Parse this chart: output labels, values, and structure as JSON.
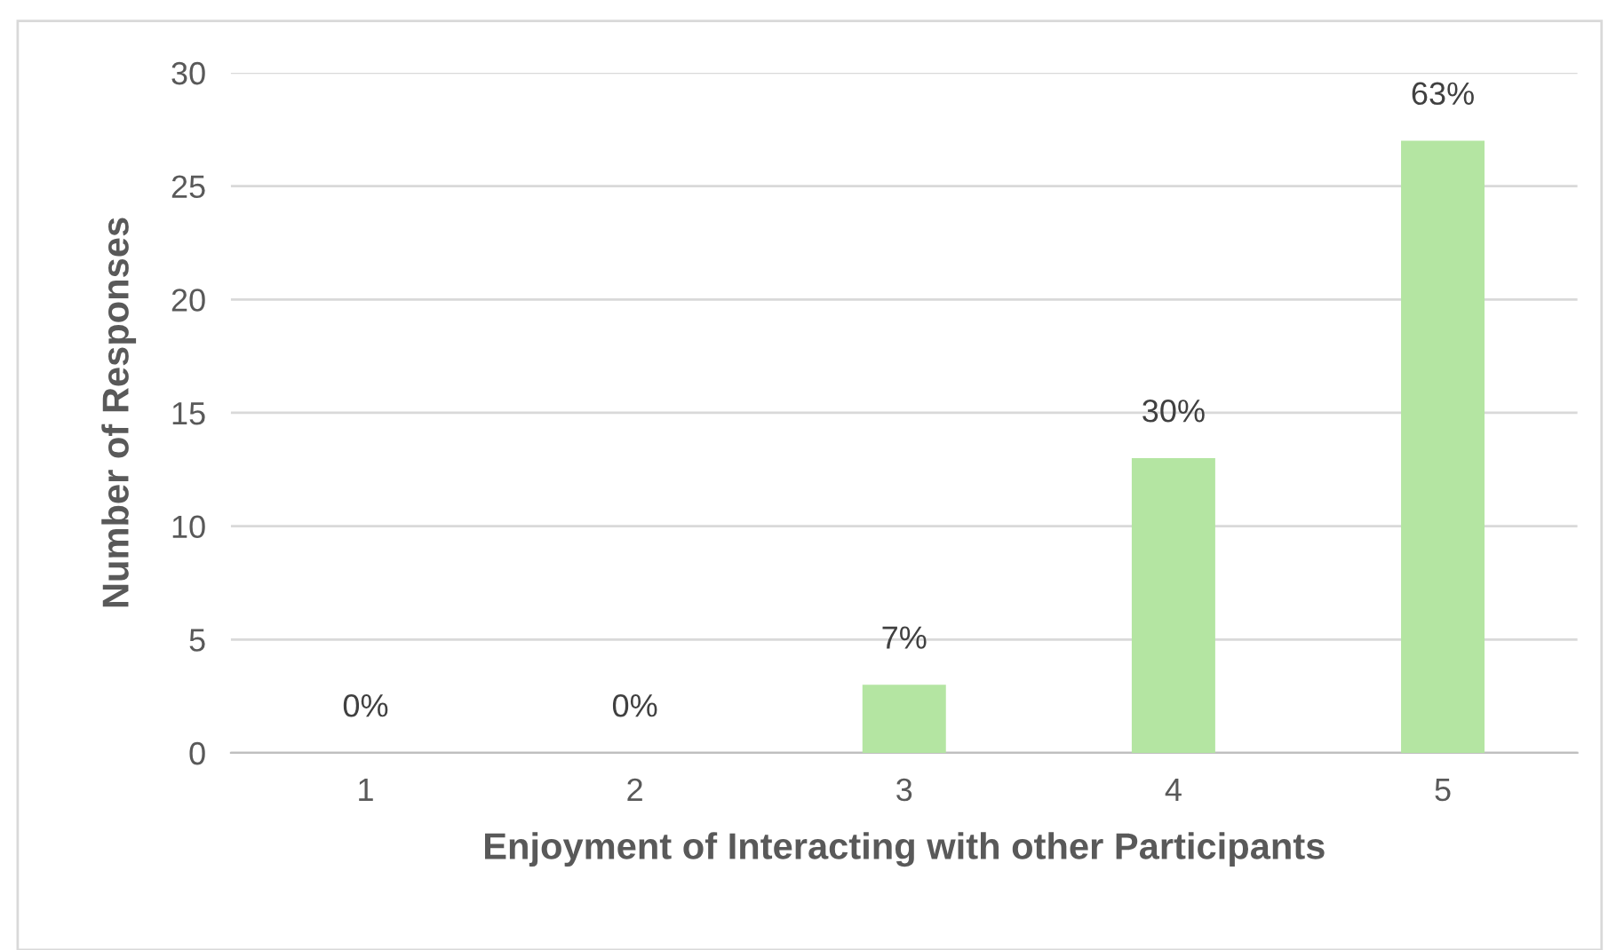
{
  "chart_data": {
    "type": "bar",
    "xlabel": "Enjoyment of Interacting with other Participants",
    "ylabel": "Number of Responses",
    "categories": [
      "1",
      "2",
      "3",
      "4",
      "5"
    ],
    "values": [
      0,
      0,
      3,
      13,
      27
    ],
    "annotations": [
      {
        "text": "0%",
        "x": "1",
        "y": 0
      },
      {
        "text": "0%",
        "x": "2",
        "y": 0
      },
      {
        "text": "7%",
        "x": "3",
        "y": 3
      },
      {
        "text": "30%",
        "x": "4",
        "y": 13
      },
      {
        "text": "63%",
        "x": "5",
        "y": 27
      }
    ],
    "color": "#b4e5a2",
    "ylim": [
      0,
      30
    ],
    "yticks": [
      0,
      5,
      10,
      15,
      20,
      25,
      30
    ],
    "grid": "y"
  }
}
